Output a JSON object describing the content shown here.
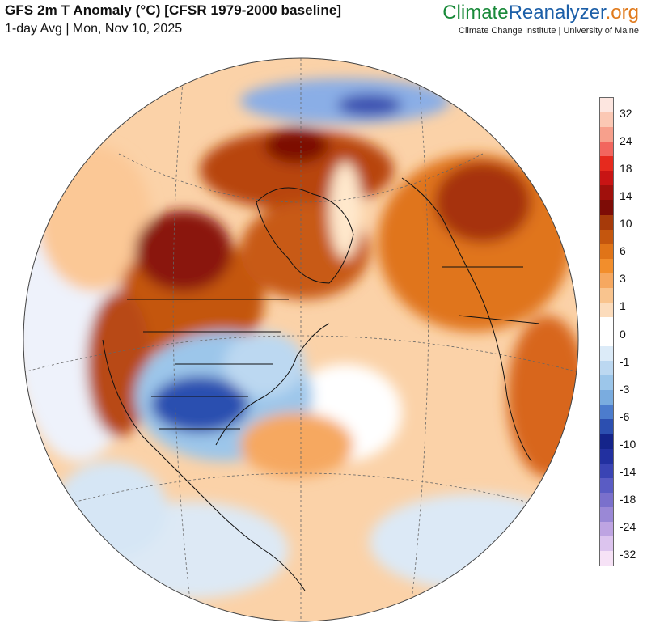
{
  "header": {
    "title": "GFS 2m T Anomaly (°C) [CFSR 1979-2000 baseline]",
    "subtitle": "1-day Avg | Mon, Nov 10, 2025"
  },
  "brand": {
    "part1": "Climate",
    "part2": "Reanalyzer",
    "part3": ".org",
    "affiliation": "Climate Change Institute | University of Maine",
    "colors": {
      "part1": "#1a8a3a",
      "part2": "#1c5fa8",
      "part3": "#e07a1c"
    }
  },
  "legend": {
    "tick_labels": [
      "32",
      "24",
      "18",
      "14",
      "10",
      "6",
      "3",
      "1",
      "0",
      "-1",
      "-3",
      "-6",
      "-10",
      "-14",
      "-18",
      "-24",
      "-32"
    ],
    "colors": [
      "#fde6e0",
      "#fbc8b4",
      "#f7a08c",
      "#f2665e",
      "#e62a1e",
      "#c81414",
      "#a0100c",
      "#7d0c06",
      "#a63a0a",
      "#c4560e",
      "#e07418",
      "#f28e2c",
      "#f6a860",
      "#f9c48e",
      "#fcdcbc",
      "#ffffff",
      "#ffffff",
      "#dcebf8",
      "#bcd8f1",
      "#9cc6ea",
      "#7aacdf",
      "#4c7ccd",
      "#2c4fb0",
      "#14248a",
      "#2230a0",
      "#3a44b4",
      "#5a5cc4",
      "#7a70cc",
      "#9a88d6",
      "#bea4e2",
      "#dcc4ee",
      "#f6e2f6"
    ]
  },
  "map": {
    "projection": "orthographic",
    "center": "North Atlantic / North America"
  }
}
